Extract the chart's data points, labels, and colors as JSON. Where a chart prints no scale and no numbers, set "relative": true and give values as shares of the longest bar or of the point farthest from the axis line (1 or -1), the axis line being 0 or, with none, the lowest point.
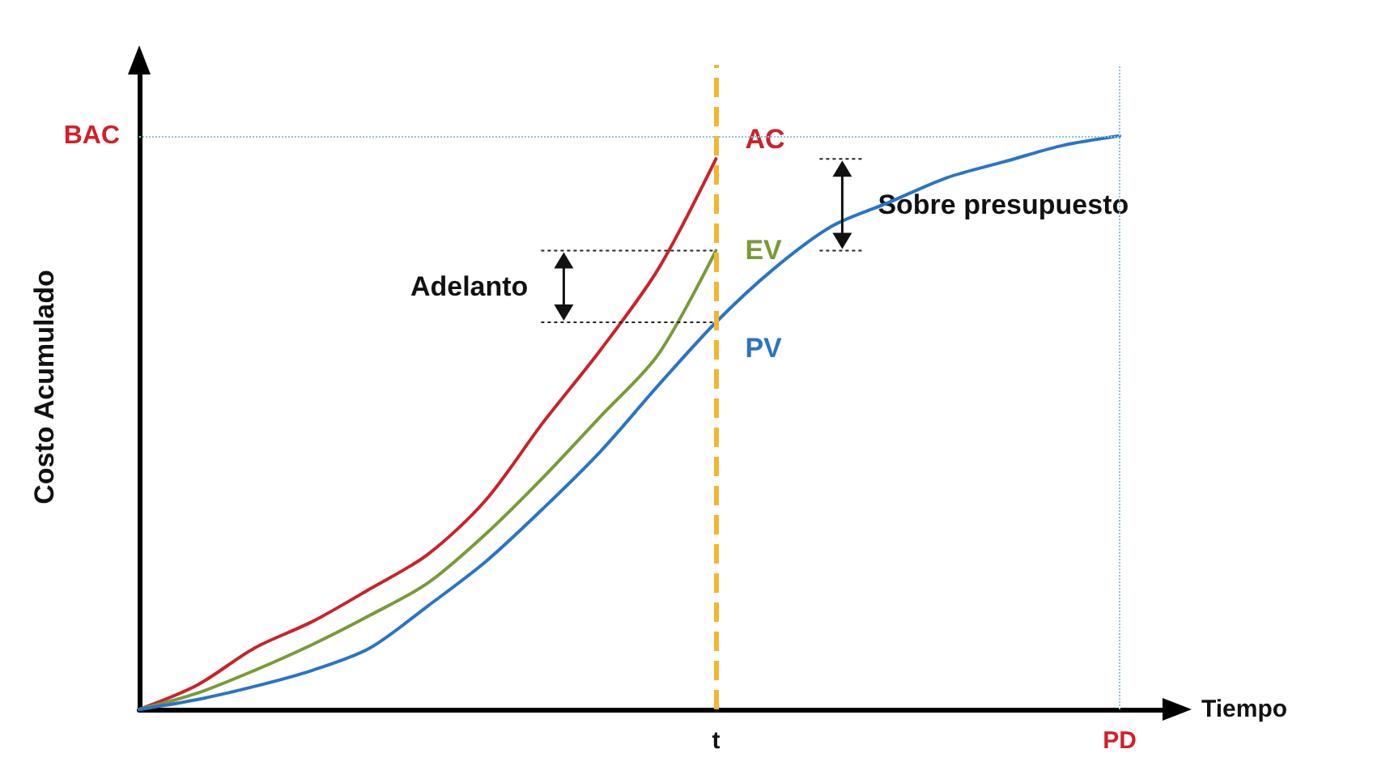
{
  "chart_data": {
    "type": "line",
    "relative": true,
    "xlabel": "Tiempo",
    "ylabel": "Costo Acumulado",
    "categories": [
      null,
      null,
      null,
      null,
      null,
      null,
      null,
      null,
      null,
      null,
      "t",
      null,
      null,
      null,
      null,
      null,
      null,
      "PD"
    ],
    "series": [
      {
        "name": "AC",
        "color": "#c8232c",
        "values": [
          0,
          0.042,
          0.107,
          0.153,
          0.21,
          0.27,
          0.364,
          0.5,
          0.627,
          0.768,
          0.96,
          null,
          null,
          null,
          null,
          null,
          null,
          null
        ]
      },
      {
        "name": "EV",
        "color": "#7a9a3a",
        "values": [
          0,
          0.028,
          0.068,
          0.113,
          0.164,
          0.22,
          0.305,
          0.404,
          0.511,
          0.619,
          0.8,
          null,
          null,
          null,
          null,
          null,
          null,
          null
        ]
      },
      {
        "name": "PV",
        "color": "#2b74c4",
        "values": [
          0,
          0.017,
          0.04,
          0.068,
          0.107,
          0.18,
          0.257,
          0.35,
          0.45,
          0.565,
          0.675,
          0.768,
          0.842,
          0.884,
          0.927,
          0.955,
          0.983,
          1
        ]
      }
    ],
    "ref_lines": [
      {
        "axis": "y",
        "value": 1,
        "label": "BAC",
        "color": "#8cc4dc",
        "line_style": "dotted"
      },
      {
        "axis": "x",
        "value": "t",
        "color": "#f4b630",
        "line_style": "dashed"
      },
      {
        "axis": "x",
        "value": "PD",
        "color": "#8cc4dc",
        "line_style": "dotted"
      }
    ],
    "annotations": [
      "Adelanto",
      "Sobre presupuesto"
    ],
    "legend": false,
    "grid": false,
    "marker": "none",
    "line_style": "solid"
  }
}
